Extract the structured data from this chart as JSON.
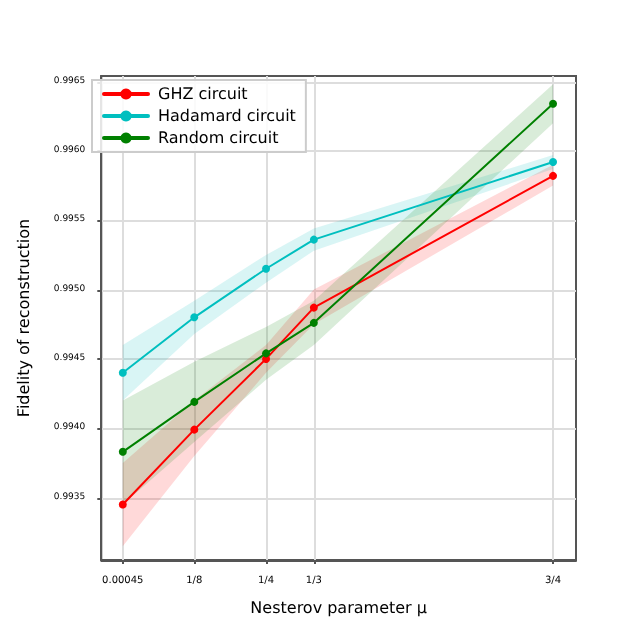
{
  "chart_data": {
    "type": "line",
    "xlabel": "Nesterov parameter μ",
    "ylabel": "Fidelity of reconstruction",
    "x": [
      0.00045,
      0.125,
      0.25,
      0.3333,
      0.75
    ],
    "series": [
      {
        "name": "GHZ circuit",
        "color": "#ff0000",
        "values": [
          0.99345,
          0.99399,
          0.9945,
          0.99487,
          0.99582
        ],
        "lower": [
          0.99315,
          0.9938,
          0.9944,
          0.99475,
          0.99575
        ],
        "upper": [
          0.99375,
          0.9942,
          0.9946,
          0.995,
          0.9959
        ]
      },
      {
        "name": "Hadamard circuit",
        "color": "#00bfbf",
        "values": [
          0.9944,
          0.9948,
          0.99515,
          0.99536,
          0.99592
        ],
        "lower": [
          0.9942,
          0.99468,
          0.99505,
          0.99528,
          0.99587
        ],
        "upper": [
          0.9946,
          0.99492,
          0.99525,
          0.99544,
          0.99597
        ]
      },
      {
        "name": "Random circuit",
        "color": "#008000",
        "values": [
          0.99383,
          0.99419,
          0.99454,
          0.99476,
          0.99634
        ],
        "lower": [
          0.99345,
          0.9939,
          0.99435,
          0.9946,
          0.9962
        ],
        "upper": [
          0.9942,
          0.99448,
          0.99473,
          0.99492,
          0.99648
        ]
      }
    ],
    "xlim": [
      -0.037,
      0.79
    ],
    "xticks": [
      {
        "value": 0.00045,
        "label": "0.00045"
      },
      {
        "value": 0.125,
        "label": "1/8"
      },
      {
        "value": 0.25,
        "label": "1/4"
      },
      {
        "value": 0.3333,
        "label": "1/3"
      },
      {
        "value": 0.75,
        "label": "3/4"
      }
    ],
    "ylim": [
      0.99305,
      0.99654
    ],
    "yticks": [
      0.9935,
      {
        "value": 0.994,
        "label": "0.9940"
      },
      0.9945,
      {
        "value": 0.995,
        "label": "0.9950"
      },
      0.9955,
      {
        "value": 0.996,
        "label": "0.9960"
      },
      0.9965
    ],
    "grid": true,
    "legend": "top left",
    "marker": "circle",
    "line_style": "solid"
  }
}
